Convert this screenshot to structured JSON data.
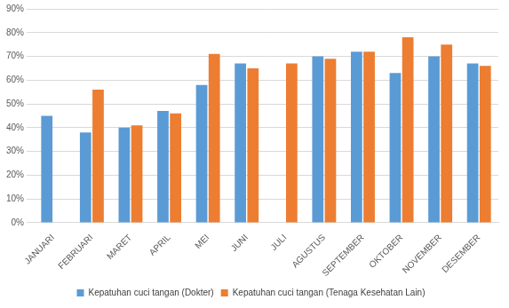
{
  "chart_data": {
    "type": "bar",
    "categories": [
      "JANUARI",
      "FEBRUARI",
      "MARET",
      "APRIL",
      "MEI",
      "JUNI",
      "JULI",
      "AGUSTUS",
      "SEPTEMBER",
      "OKTOBER",
      "NOVEMBER",
      "DESEMBER"
    ],
    "series": [
      {
        "name": "Kepatuhan cuci tangan (Dokter)",
        "color": "#5b9bd5",
        "values": [
          45,
          38,
          40,
          47,
          58,
          67,
          null,
          70,
          72,
          63,
          70,
          67
        ]
      },
      {
        "name": "Kepatuhan cuci tangan (Tenaga Kesehatan Lain)",
        "color": "#ed7d31",
        "values": [
          null,
          56,
          41,
          46,
          71,
          65,
          67,
          69,
          72,
          78,
          75,
          66
        ]
      }
    ],
    "ylim": [
      0,
      90
    ],
    "yticks": [
      {
        "value": 0,
        "label": "0%"
      },
      {
        "value": 10,
        "label": "10%"
      },
      {
        "value": 20,
        "label": "20%"
      },
      {
        "value": 30,
        "label": "30%"
      },
      {
        "value": 40,
        "label": "40%"
      },
      {
        "value": 50,
        "label": "50%"
      },
      {
        "value": 60,
        "label": "60%"
      },
      {
        "value": 70,
        "label": "70%"
      },
      {
        "value": 80,
        "label": "80%"
      },
      {
        "value": 90,
        "label": "90%"
      }
    ],
    "grid": true,
    "legend": "bottom"
  }
}
